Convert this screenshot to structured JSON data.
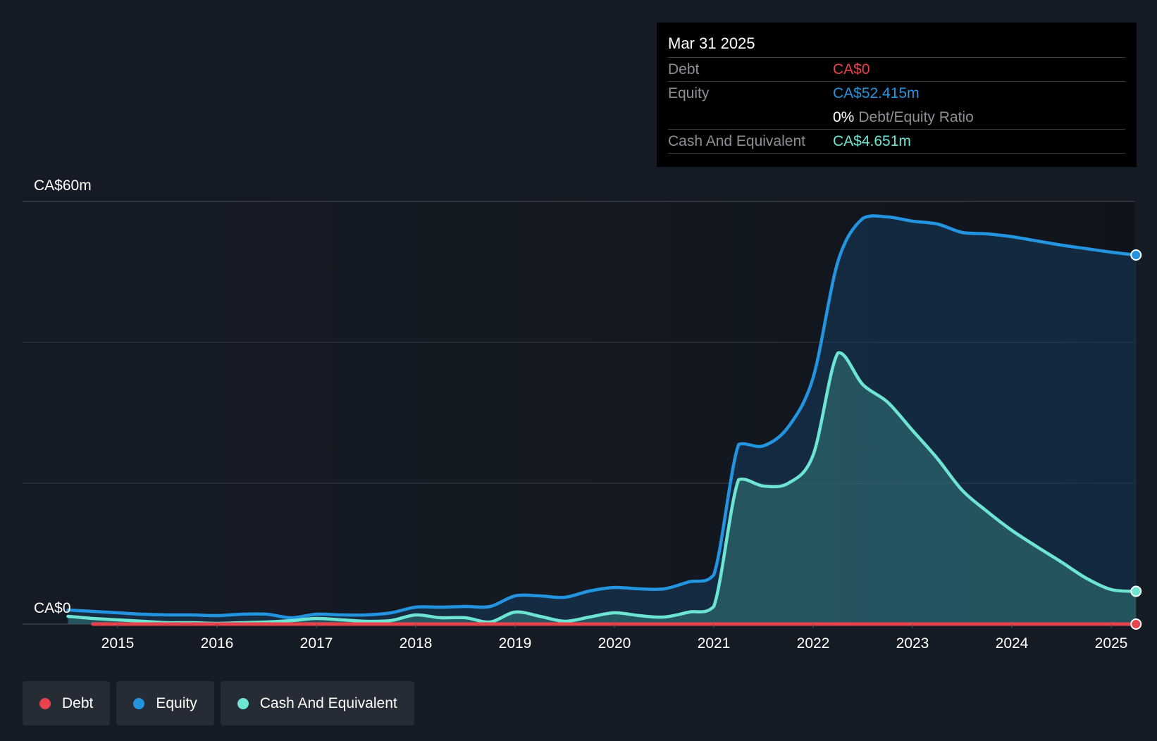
{
  "colors": {
    "background": "#151b24",
    "debt": "#e8434c",
    "equity": "#2394df",
    "cash": "#6ee5d3",
    "grid": "#3a4048"
  },
  "tooltip": {
    "date": "Mar 31 2025",
    "debt_label": "Debt",
    "debt_value": "CA$0",
    "equity_label": "Equity",
    "equity_value": "CA$52.415m",
    "ratio_value": "0%",
    "ratio_label": "Debt/Equity Ratio",
    "cash_label": "Cash And Equivalent",
    "cash_value": "CA$4.651m"
  },
  "legend": [
    {
      "label": "Debt",
      "color": "#e8434c"
    },
    {
      "label": "Equity",
      "color": "#2394df"
    },
    {
      "label": "Cash And Equivalent",
      "color": "#6ee5d3"
    }
  ],
  "chart_data": {
    "type": "area",
    "y_axis_labels": [
      "CA$60m",
      "CA$0"
    ],
    "ylim": [
      0,
      60
    ],
    "xlim": [
      2014.5,
      2025.25
    ],
    "x_ticks": [
      "2015",
      "2016",
      "2017",
      "2018",
      "2019",
      "2020",
      "2021",
      "2022",
      "2023",
      "2024",
      "2025"
    ],
    "grid": true,
    "series": [
      {
        "name": "Debt",
        "color": "#e8434c",
        "points": [
          [
            2014.75,
            0
          ],
          [
            2016.0,
            0
          ],
          [
            2018.0,
            0
          ],
          [
            2020.0,
            0
          ],
          [
            2022.0,
            0
          ],
          [
            2024.0,
            0
          ],
          [
            2025.25,
            0
          ]
        ]
      },
      {
        "name": "Equity",
        "color": "#2394df",
        "points": [
          [
            2014.5,
            2.0
          ],
          [
            2014.75,
            1.8
          ],
          [
            2015.0,
            1.6
          ],
          [
            2015.25,
            1.4
          ],
          [
            2015.5,
            1.3
          ],
          [
            2015.75,
            1.3
          ],
          [
            2016.0,
            1.2
          ],
          [
            2016.25,
            1.4
          ],
          [
            2016.5,
            1.4
          ],
          [
            2016.75,
            0.9
          ],
          [
            2017.0,
            1.4
          ],
          [
            2017.25,
            1.3
          ],
          [
            2017.5,
            1.3
          ],
          [
            2017.75,
            1.6
          ],
          [
            2018.0,
            2.4
          ],
          [
            2018.25,
            2.4
          ],
          [
            2018.5,
            2.5
          ],
          [
            2018.75,
            2.5
          ],
          [
            2019.0,
            4.0
          ],
          [
            2019.25,
            4.0
          ],
          [
            2019.5,
            3.8
          ],
          [
            2019.75,
            4.7
          ],
          [
            2020.0,
            5.2
          ],
          [
            2020.25,
            5.0
          ],
          [
            2020.5,
            5.0
          ],
          [
            2020.75,
            6.0
          ],
          [
            2021.0,
            7.0
          ],
          [
            2021.25,
            25.5
          ],
          [
            2021.5,
            25.3
          ],
          [
            2021.75,
            28.0
          ],
          [
            2022.0,
            35.0
          ],
          [
            2022.25,
            51.5
          ],
          [
            2022.5,
            57.6
          ],
          [
            2022.75,
            57.8
          ],
          [
            2023.0,
            57.2
          ],
          [
            2023.25,
            56.8
          ],
          [
            2023.5,
            55.6
          ],
          [
            2023.75,
            55.4
          ],
          [
            2024.0,
            55.0
          ],
          [
            2024.25,
            54.4
          ],
          [
            2024.5,
            53.8
          ],
          [
            2024.75,
            53.3
          ],
          [
            2025.0,
            52.8
          ],
          [
            2025.25,
            52.4
          ]
        ]
      },
      {
        "name": "Cash And Equivalent",
        "color": "#6ee5d3",
        "points": [
          [
            2014.5,
            1.1
          ],
          [
            2014.75,
            0.8
          ],
          [
            2015.0,
            0.6
          ],
          [
            2015.25,
            0.4
          ],
          [
            2015.5,
            0.2
          ],
          [
            2015.75,
            0.2
          ],
          [
            2016.0,
            0.1
          ],
          [
            2016.25,
            0.2
          ],
          [
            2016.5,
            0.3
          ],
          [
            2016.75,
            0.5
          ],
          [
            2017.0,
            0.8
          ],
          [
            2017.25,
            0.6
          ],
          [
            2017.5,
            0.4
          ],
          [
            2017.75,
            0.5
          ],
          [
            2018.0,
            1.3
          ],
          [
            2018.25,
            0.9
          ],
          [
            2018.5,
            0.9
          ],
          [
            2018.75,
            0.3
          ],
          [
            2019.0,
            1.7
          ],
          [
            2019.25,
            1.1
          ],
          [
            2019.5,
            0.4
          ],
          [
            2019.75,
            1.0
          ],
          [
            2020.0,
            1.6
          ],
          [
            2020.25,
            1.2
          ],
          [
            2020.5,
            1.0
          ],
          [
            2020.75,
            1.7
          ],
          [
            2021.0,
            2.5
          ],
          [
            2021.25,
            20.5
          ],
          [
            2021.5,
            19.6
          ],
          [
            2021.75,
            20.0
          ],
          [
            2022.0,
            24.0
          ],
          [
            2022.25,
            38.5
          ],
          [
            2022.5,
            34.0
          ],
          [
            2022.75,
            31.5
          ],
          [
            2023.0,
            27.5
          ],
          [
            2023.25,
            23.5
          ],
          [
            2023.5,
            19.0
          ],
          [
            2023.75,
            16.0
          ],
          [
            2024.0,
            13.3
          ],
          [
            2024.25,
            11.0
          ],
          [
            2024.5,
            8.8
          ],
          [
            2024.75,
            6.5
          ],
          [
            2025.0,
            4.9
          ],
          [
            2025.25,
            4.651
          ]
        ]
      }
    ]
  }
}
